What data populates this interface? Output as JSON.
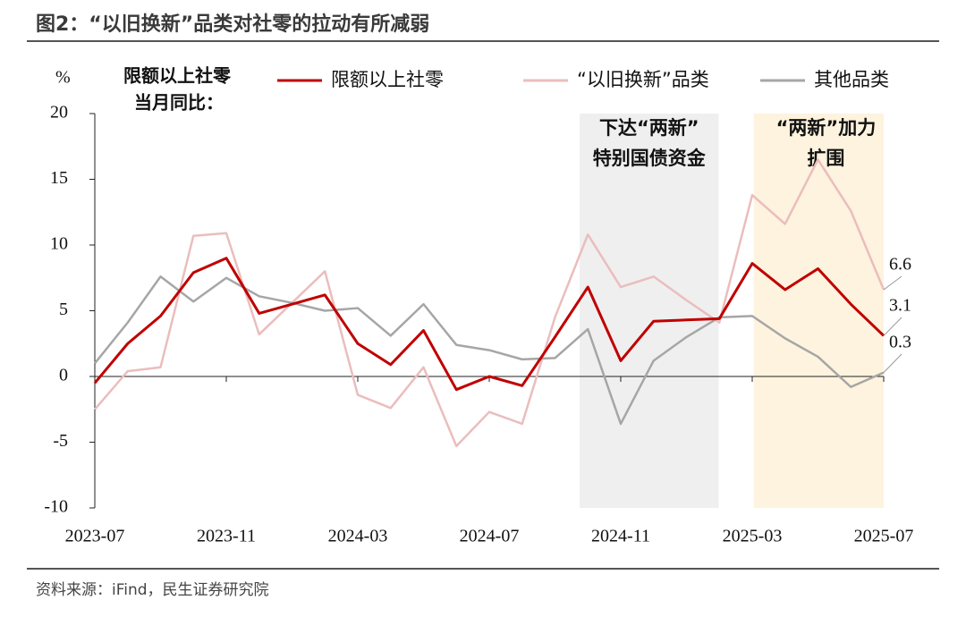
{
  "chart_data": {
    "type": "line",
    "title": "图2：“以旧换新”品类对社零的拉动有所减弱",
    "source": "资料来源：iFind，民生证券研究院",
    "y_unit": "%",
    "legend_title": [
      "限额以上社零",
      "当月同比："
    ],
    "categories": [
      "2023-07",
      null,
      null,
      null,
      "2023-11",
      null,
      null,
      null,
      "2024-03",
      null,
      null,
      null,
      "2024-07",
      null,
      null,
      null,
      "2024-11",
      null,
      null,
      null,
      "2025-03",
      null,
      null,
      null,
      "2025-07"
    ],
    "ylim": [
      -10,
      20
    ],
    "yticks": [
      -10,
      -5,
      0,
      5,
      10,
      15,
      20
    ],
    "regions": [
      {
        "from": "2024-10",
        "to": "2025-02",
        "color": "#efefef",
        "label": [
          "下达“两新”",
          "特别国债资金"
        ]
      },
      {
        "from": "2025-03",
        "to": "2025-07",
        "color": "#fdf3de",
        "label": [
          "“两新”加力",
          "扩围"
        ]
      }
    ],
    "series": [
      {
        "name": "限额以上社零",
        "color": "#c00000",
        "end_label": "3.1",
        "values": [
          -0.5,
          2.5,
          4.6,
          7.9,
          9.0,
          4.8,
          5.5,
          6.2,
          2.5,
          0.9,
          3.5,
          -1.0,
          0.0,
          -0.7,
          3.0,
          6.8,
          1.2,
          4.2,
          4.3,
          4.4,
          8.6,
          6.6,
          8.2,
          5.5,
          3.1
        ]
      },
      {
        "name": "“以旧换新”品类",
        "color": "#ebbdbd",
        "end_label": "6.6",
        "values": [
          -2.5,
          0.4,
          0.7,
          10.7,
          10.9,
          3.2,
          5.6,
          8.0,
          -1.4,
          -2.4,
          0.7,
          -5.3,
          -2.7,
          -3.6,
          4.5,
          10.8,
          6.8,
          7.6,
          5.8,
          4.1,
          13.8,
          11.6,
          16.5,
          12.6,
          6.6
        ]
      },
      {
        "name": "其他品类",
        "color": "#a6a6a6",
        "end_label": "0.3",
        "values": [
          1.0,
          4.1,
          7.6,
          5.7,
          7.5,
          6.1,
          5.6,
          5.0,
          5.2,
          3.1,
          5.5,
          2.4,
          2.0,
          1.3,
          1.4,
          3.6,
          -3.6,
          1.2,
          3.0,
          4.5,
          4.6,
          2.9,
          1.5,
          -0.8,
          0.3
        ]
      }
    ]
  }
}
